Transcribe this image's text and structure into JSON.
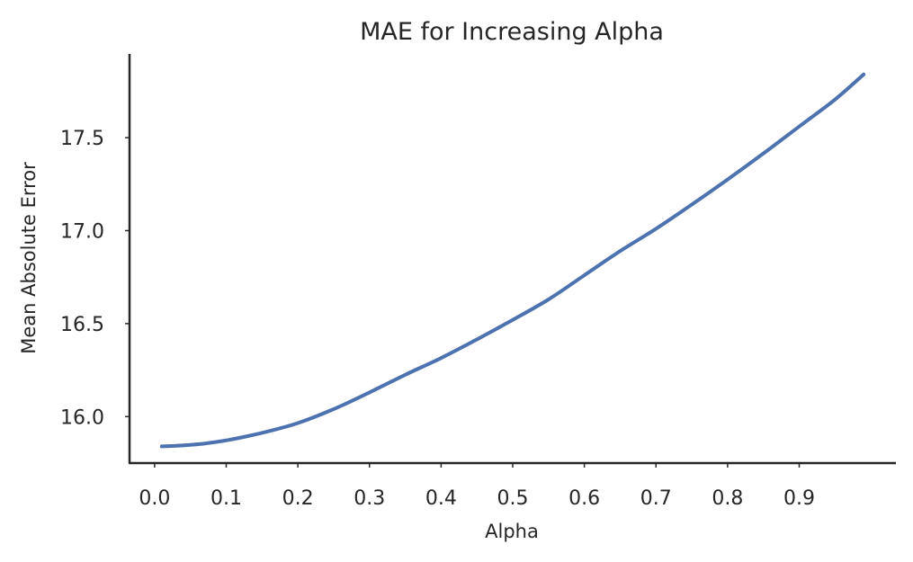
{
  "chart_data": {
    "type": "line",
    "title": "MAE for Increasing Alpha",
    "xlabel": "Alpha",
    "ylabel": "Mean Absolute Error",
    "xlim": [
      -0.035,
      1.035
    ],
    "ylim": [
      15.75,
      17.95
    ],
    "xticks": [
      0.0,
      0.1,
      0.2,
      0.3,
      0.4,
      0.5,
      0.6,
      0.7,
      0.8,
      0.9
    ],
    "xtick_labels": [
      "0.0",
      "0.1",
      "0.2",
      "0.3",
      "0.4",
      "0.5",
      "0.6",
      "0.7",
      "0.8",
      "0.9"
    ],
    "yticks": [
      16.0,
      16.5,
      17.0,
      17.5
    ],
    "ytick_labels": [
      "16.0",
      "16.5",
      "17.0",
      "17.5"
    ],
    "grid": false,
    "color": "#4c72b0",
    "series": [
      {
        "x": [
          0.01,
          0.03,
          0.05,
          0.07,
          0.1,
          0.13,
          0.16,
          0.2,
          0.25,
          0.3,
          0.35,
          0.4,
          0.45,
          0.5,
          0.55,
          0.6,
          0.65,
          0.7,
          0.75,
          0.8,
          0.85,
          0.9,
          0.95,
          0.99
        ],
        "y": [
          15.84,
          15.843,
          15.848,
          15.855,
          15.872,
          15.895,
          15.922,
          15.965,
          16.04,
          16.13,
          16.225,
          16.315,
          16.415,
          16.52,
          16.63,
          16.76,
          16.89,
          17.01,
          17.14,
          17.275,
          17.415,
          17.56,
          17.705,
          17.84
        ]
      }
    ]
  }
}
